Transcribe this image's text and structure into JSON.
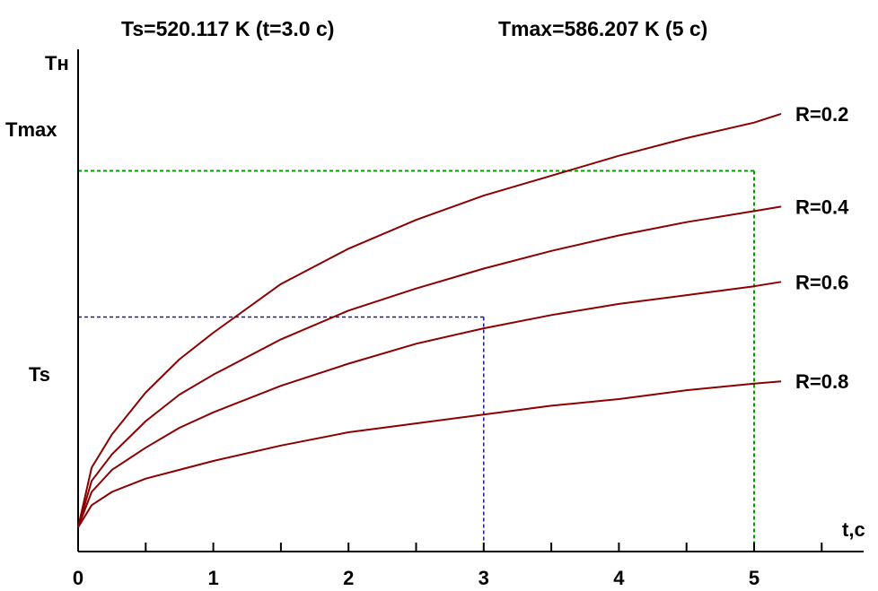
{
  "header": {
    "ts_label": "Ts=520.117 K (t=3.0 c)",
    "tmax_label": "Tmax=586.207 K (5 c)"
  },
  "chart_data": {
    "type": "line",
    "xlabel": "t,c",
    "ylabel": "Tн",
    "x_ticks": [
      "0",
      "1",
      "2",
      "3",
      "4",
      "5"
    ],
    "xlim": [
      0,
      5.2
    ],
    "y_marks": {
      "tmax": {
        "label": "Tmax",
        "value": 586.207,
        "at_t": 5
      },
      "ts": {
        "label": "Ts",
        "value": 520.117,
        "at_t": 3.0
      }
    },
    "series": [
      {
        "name": "R=0.2",
        "x": [
          0,
          0.1,
          0.25,
          0.5,
          0.75,
          1,
          1.5,
          2,
          2.5,
          3,
          3.5,
          4,
          4.5,
          5,
          5.2
        ],
        "y": [
          425,
          452,
          467,
          486,
          501,
          513,
          535,
          551,
          564,
          575,
          584,
          593,
          601,
          608,
          612
        ]
      },
      {
        "name": "R=0.4",
        "x": [
          0,
          0.1,
          0.25,
          0.5,
          0.75,
          1,
          1.5,
          2,
          2.5,
          3,
          3.5,
          4,
          4.5,
          5,
          5.2
        ],
        "y": [
          425,
          446,
          458,
          473,
          485,
          494,
          510,
          523,
          533,
          542,
          550,
          557,
          563,
          568,
          570
        ]
      },
      {
        "name": "R=0.6",
        "x": [
          0,
          0.1,
          0.25,
          0.5,
          0.75,
          1,
          1.5,
          2,
          2.5,
          3,
          3.5,
          4,
          4.5,
          5,
          5.2
        ],
        "y": [
          425,
          441,
          451,
          461,
          470,
          477,
          489,
          499,
          508,
          515,
          521,
          526,
          530,
          534,
          536
        ]
      },
      {
        "name": "R=0.8",
        "x": [
          0,
          0.1,
          0.25,
          0.5,
          0.75,
          1,
          1.5,
          2,
          2.5,
          3,
          3.5,
          4,
          4.5,
          5,
          5.2
        ],
        "y": [
          425,
          435,
          441,
          447,
          451,
          455,
          462,
          468,
          472,
          476,
          480,
          483,
          487,
          490,
          491
        ]
      }
    ],
    "grid": false,
    "colors": {
      "curve": "#8b0000",
      "tmax_guide": "#00a000",
      "ts_guide": "#1a1a8c",
      "axis": "#000000"
    }
  }
}
